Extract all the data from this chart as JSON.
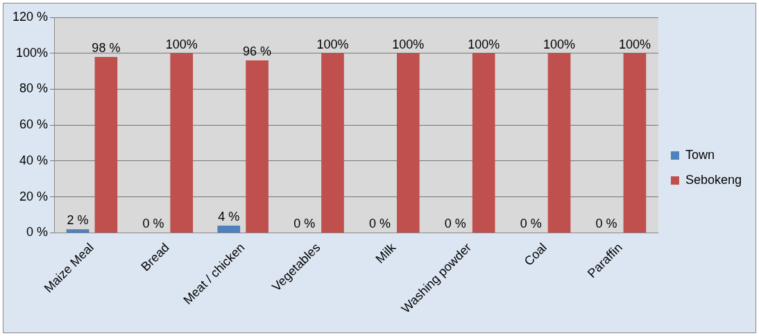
{
  "chart_data": {
    "type": "bar",
    "categories": [
      "Maize Meal",
      "Bread",
      "Meat / chicken",
      "Vegetables",
      "Milk",
      "Washing powder",
      "Coal",
      "Paraffin"
    ],
    "series": [
      {
        "name": "Town",
        "color": "#4f81bd",
        "values": [
          2,
          0,
          4,
          0,
          0,
          0,
          0,
          0
        ],
        "value_labels": [
          "2 %",
          "0 %",
          "4 %",
          "0 %",
          "0 %",
          "0 %",
          "0 %",
          "0 %"
        ]
      },
      {
        "name": "Sebokeng",
        "color": "#c0504d",
        "values": [
          98,
          100,
          96,
          100,
          100,
          100,
          100,
          100
        ],
        "value_labels": [
          "98 %",
          "100%",
          "96 %",
          "100%",
          "100%",
          "100%",
          "100%",
          "100%"
        ]
      }
    ],
    "ylim": [
      0,
      120
    ],
    "yticks": [
      {
        "value": 0,
        "label": "0 %"
      },
      {
        "value": 20,
        "label": "20 %"
      },
      {
        "value": 40,
        "label": "40 %"
      },
      {
        "value": 60,
        "label": "60 %"
      },
      {
        "value": 80,
        "label": "80 %"
      },
      {
        "value": 100,
        "label": "100%"
      },
      {
        "value": 120,
        "label": "120 %"
      }
    ],
    "grid": "y",
    "legend": "right"
  }
}
